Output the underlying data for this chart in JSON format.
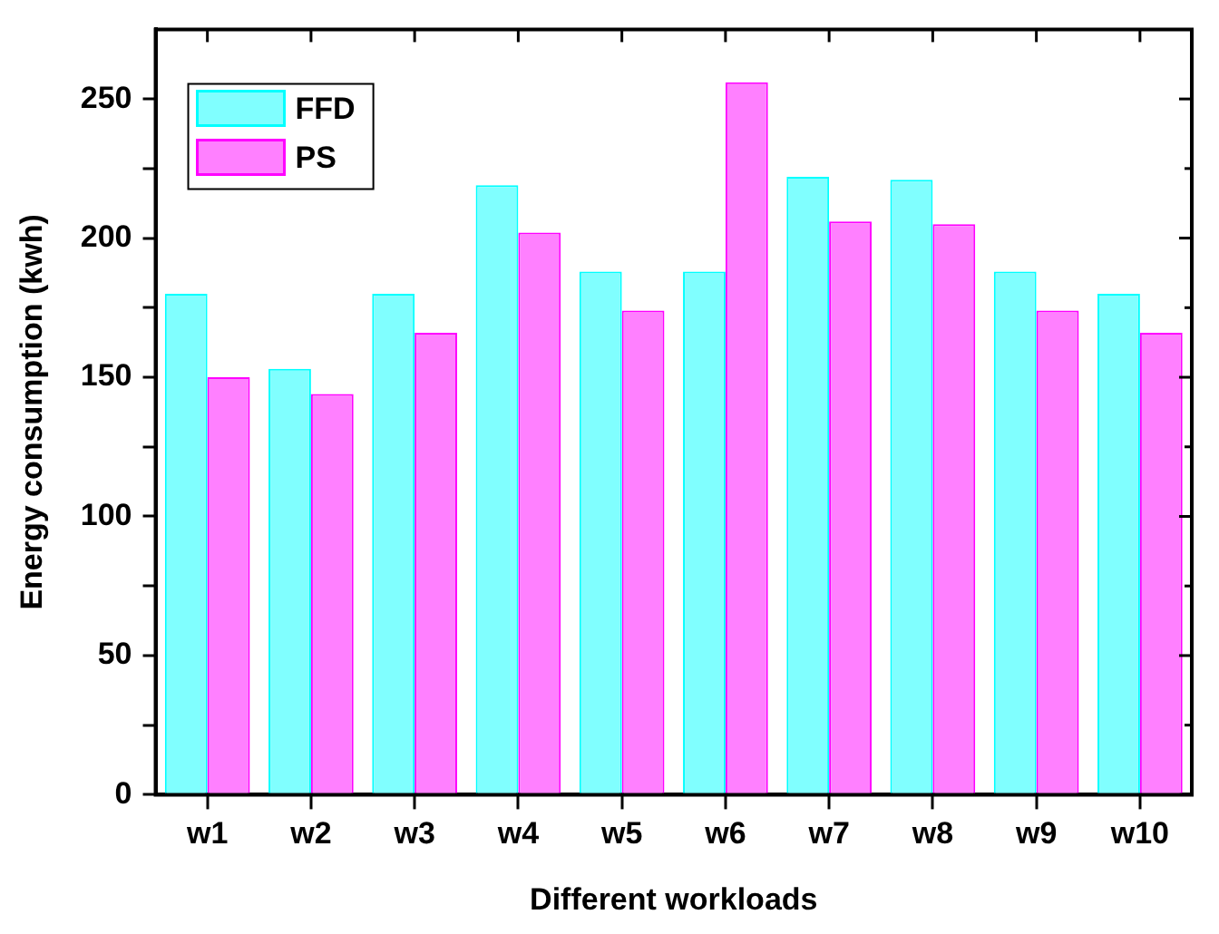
{
  "chart_data": {
    "type": "bar",
    "xlabel": "Different workloads",
    "ylabel": "Energy consumption (kwh)",
    "categories": [
      "w1",
      "w2",
      "w3",
      "w4",
      "w5",
      "w6",
      "w7",
      "w8",
      "w9",
      "w10"
    ],
    "series": [
      {
        "name": "FFD",
        "color": "#80ffff",
        "values": [
          180,
          153,
          180,
          219,
          188,
          188,
          222,
          221,
          188,
          180
        ]
      },
      {
        "name": "PS",
        "color": "#ff80ff",
        "values": [
          150,
          144,
          166,
          202,
          174,
          256,
          206,
          205,
          174,
          166
        ]
      }
    ],
    "ylim": [
      0,
      275
    ],
    "yticks": [
      0,
      {
        "value": 25,
        "label": null
      },
      50,
      {
        "value": 75,
        "label": null
      },
      100,
      {
        "value": 125,
        "label": null
      },
      150,
      {
        "value": 175,
        "label": null
      },
      200,
      {
        "value": 225,
        "label": null
      },
      250
    ],
    "grid": false,
    "legend": "top left"
  }
}
